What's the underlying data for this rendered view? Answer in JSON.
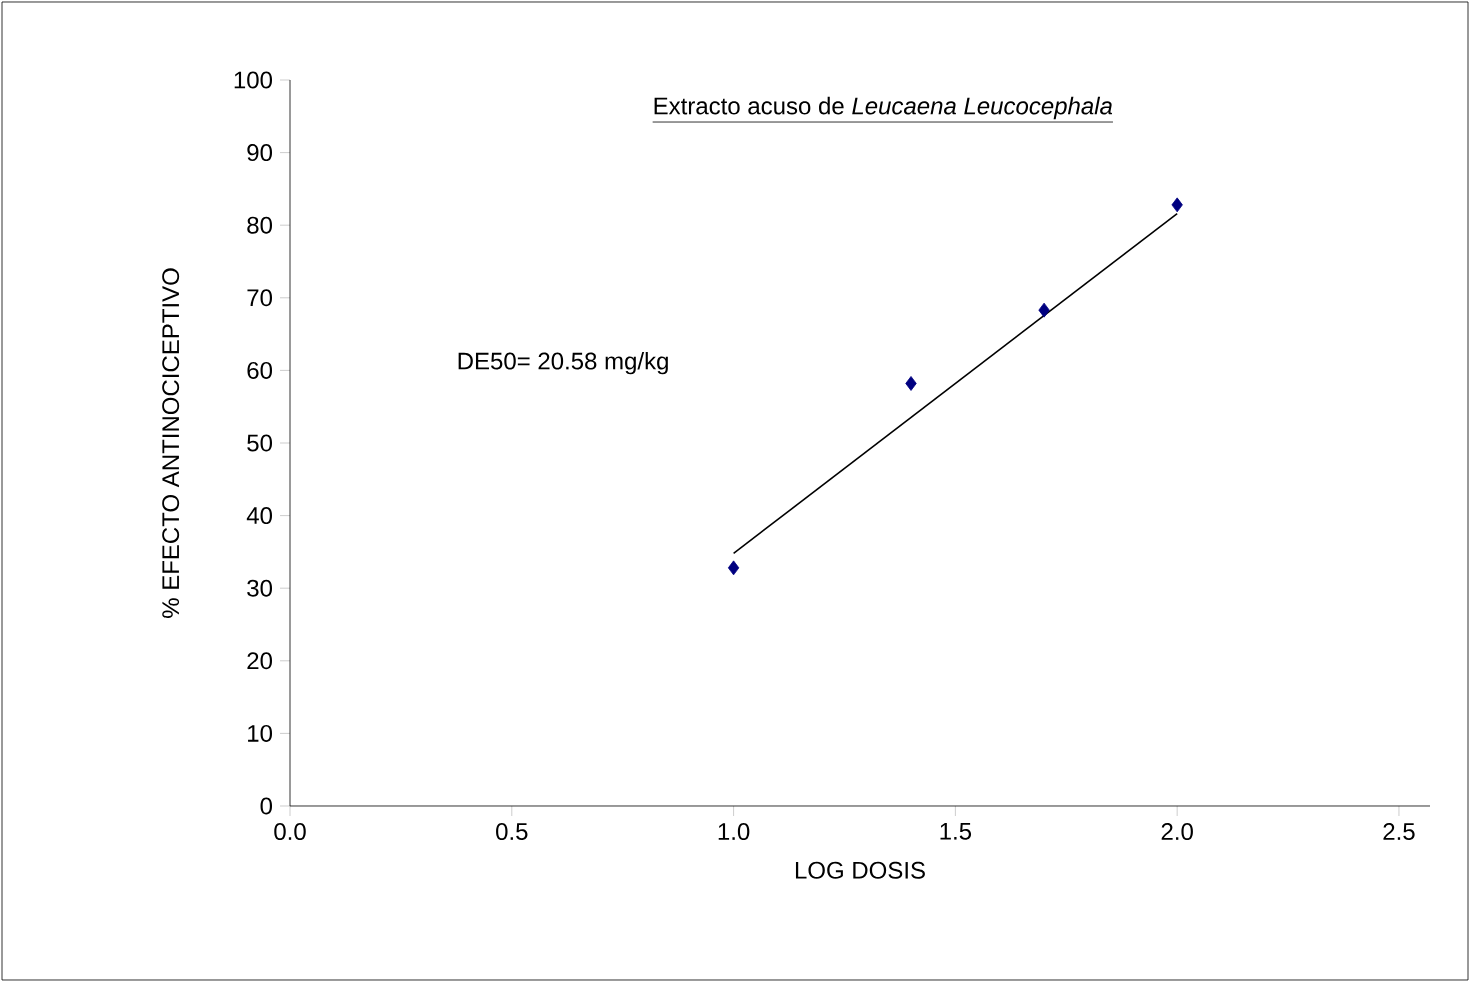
{
  "chart_data": {
    "type": "scatter",
    "title": "Extracto acuso de *Leucaena Leucocephala*",
    "xlabel": "LOG DOSIS",
    "ylabel": "% EFECTO   ANTINOCICEPTIVO",
    "annotations": [
      "DE50=  20.58 mg/kg"
    ],
    "marker": "diamond",
    "grid": false,
    "xlim": [
      0,
      2.57
    ],
    "xticks": [
      {
        "value": 0,
        "label": "0.0"
      },
      0.5,
      {
        "value": 1,
        "label": "1.0"
      },
      1.5,
      {
        "value": 2,
        "label": "2.0"
      },
      2.5
    ],
    "ylim": [
      0,
      100
    ],
    "yticks": [
      0,
      10,
      20,
      30,
      40,
      50,
      60,
      70,
      80,
      90,
      100
    ],
    "series": [
      {
        "color": "#000080",
        "x": [
          1.0,
          1.4,
          1.7,
          2.0
        ],
        "values": [
          32.8,
          58.2,
          68.3,
          82.8
        ]
      },
      {
        "type": "line",
        "color": "#000000",
        "marker": "none",
        "x": [
          1.0,
          2.0
        ],
        "values": [
          34.8,
          81.6
        ]
      }
    ]
  }
}
